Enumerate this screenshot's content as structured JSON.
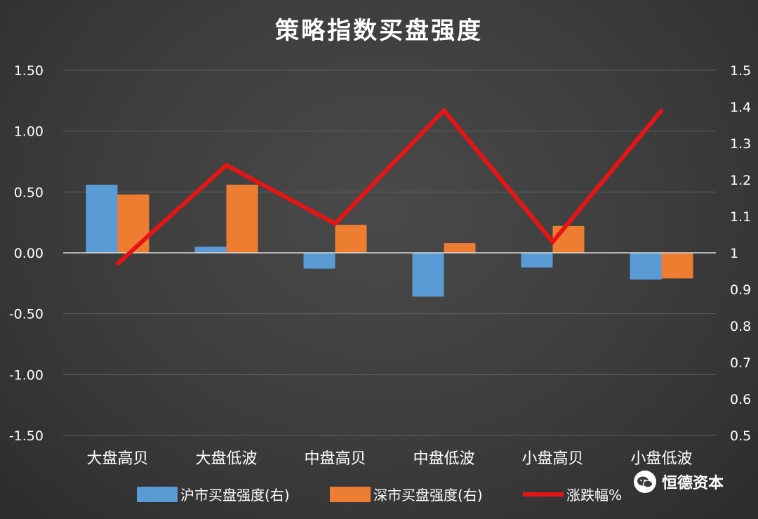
{
  "chart_data": {
    "type": "bar",
    "title": "策略指数买盘强度",
    "categories": [
      "大盘高贝",
      "大盘低波",
      "中盘高贝",
      "中盘低波",
      "小盘高贝",
      "小盘低波"
    ],
    "series": [
      {
        "name": "沪市买盘强度(右)",
        "type": "bar",
        "axis": "left",
        "color": "#5b9bd5",
        "values": [
          0.56,
          0.05,
          -0.13,
          -0.36,
          -0.12,
          -0.22
        ]
      },
      {
        "name": "深市买盘强度(右)",
        "type": "bar",
        "axis": "left",
        "color": "#ed7d31",
        "values": [
          0.48,
          0.56,
          0.23,
          0.08,
          0.22,
          -0.21
        ]
      },
      {
        "name": "涨跌幅%",
        "type": "line",
        "axis": "right",
        "color": "#e81414",
        "values": [
          0.97,
          1.24,
          1.08,
          1.39,
          1.03,
          1.39
        ]
      }
    ],
    "y_left": {
      "min": -1.5,
      "max": 1.5,
      "ticks": [
        "1.50",
        "1.00",
        "0.50",
        "0.00",
        "-0.50",
        "-1.00",
        "-1.50"
      ]
    },
    "y_right": {
      "min": 0.5,
      "max": 1.5,
      "ticks": [
        "1.5",
        "1.4",
        "1.3",
        "1.2",
        "1.1",
        "1",
        "0.9",
        "0.8",
        "0.7",
        "0.6",
        "0.5"
      ]
    },
    "grid": true,
    "legend_position": "bottom"
  },
  "watermark": {
    "icon": "wechat-icon",
    "text": "恒德资本"
  }
}
